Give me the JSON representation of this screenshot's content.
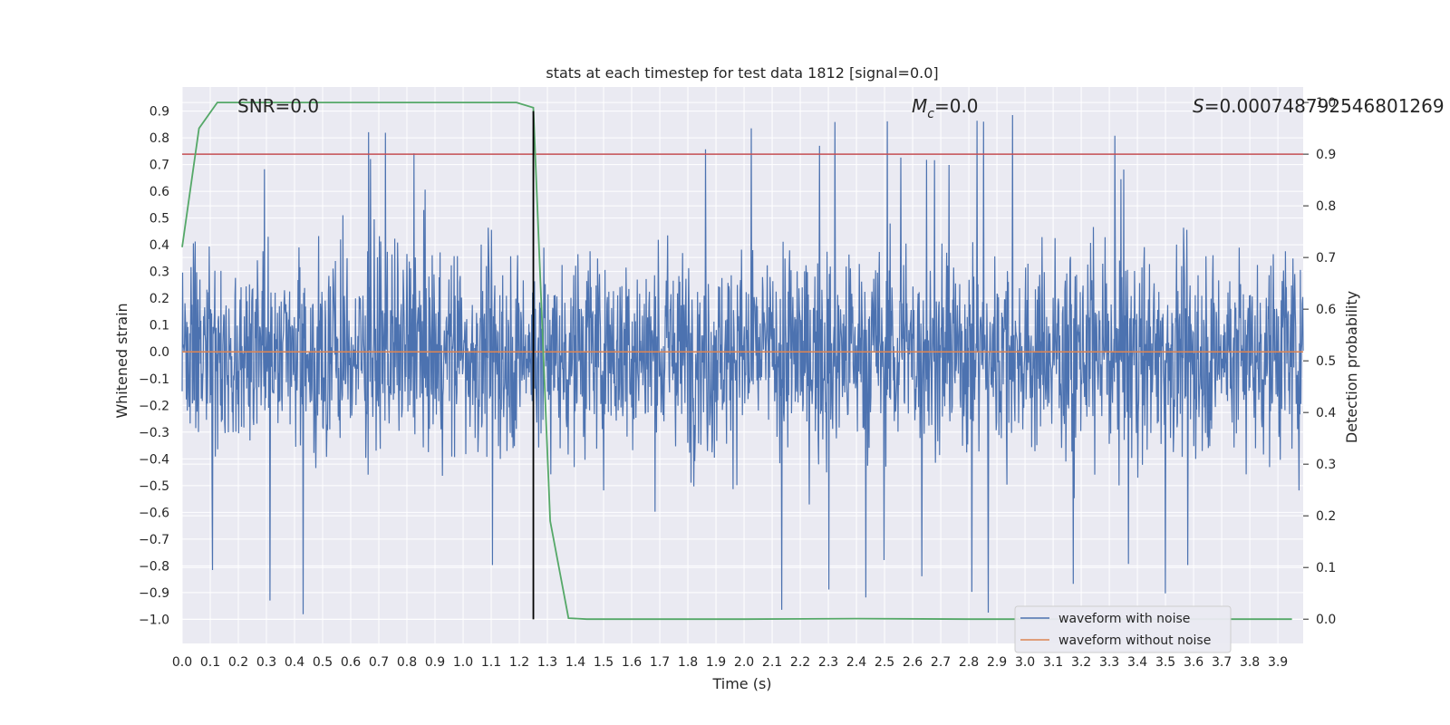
{
  "chart_data": {
    "type": "line",
    "title": "stats at each timestep for test data 1812 [signal=0.0]",
    "xlabel": "Time (s)",
    "ylabel": "Whitened strain",
    "ylabel_right": "Detection probability",
    "xlim": [
      0.0,
      3.99
    ],
    "ylim": [
      -1.09,
      0.99
    ],
    "ylim_right": [
      -0.047,
      1.03
    ],
    "x_ticks": [
      "0.0",
      "0.1",
      "0.2",
      "0.3",
      "0.4",
      "0.5",
      "0.6",
      "0.7",
      "0.8",
      "0.9",
      "1.0",
      "1.1",
      "1.2",
      "1.3",
      "1.4",
      "1.5",
      "1.6",
      "1.7",
      "1.8",
      "1.9",
      "2.0",
      "2.1",
      "2.2",
      "2.3",
      "2.4",
      "2.5",
      "2.6",
      "2.7",
      "2.8",
      "2.9",
      "3.0",
      "3.1",
      "3.2",
      "3.3",
      "3.4",
      "3.5",
      "3.6",
      "3.7",
      "3.8",
      "3.9"
    ],
    "y_ticks": [
      "−1.0",
      "−0.9",
      "−0.8",
      "−0.7",
      "−0.6",
      "−0.5",
      "−0.4",
      "−0.3",
      "−0.2",
      "−0.1",
      "0.0",
      "0.1",
      "0.2",
      "0.3",
      "0.4",
      "0.5",
      "0.6",
      "0.7",
      "0.8",
      "0.9"
    ],
    "y_ticks_right": [
      "0.0",
      "0.1",
      "0.2",
      "0.3",
      "0.4",
      "0.5",
      "0.6",
      "0.7",
      "0.8",
      "0.9",
      "1.0"
    ],
    "annotations": {
      "snr": "SNR=0.0",
      "mc_symbol": "M",
      "mc_sub": "c",
      "mc_value": "=0.0",
      "s_symbol": "S",
      "s_value": "=0.000748792546801269"
    },
    "threshold": {
      "value": 0.9,
      "axis": "right",
      "color": "#c44e52"
    },
    "marker_line": {
      "x": 1.25,
      "y_range": [
        -1.0,
        0.9
      ],
      "color": "#000000"
    },
    "series": [
      {
        "name": "waveform with noise",
        "color": "#4c72b0",
        "kind": "noise",
        "x_range": [
          0.0,
          3.99
        ],
        "amplitude_range": [
          -1.0,
          0.9
        ]
      },
      {
        "name": "waveform without noise",
        "color": "#dd8452",
        "kind": "constant",
        "value": 0.0
      },
      {
        "name": "Detection probability",
        "color": "#55a868",
        "axis": "right",
        "x": [
          0.0,
          0.06,
          0.125,
          0.19,
          0.5,
          1.0,
          1.19,
          1.25,
          1.31,
          1.375,
          1.44,
          2.0,
          2.4,
          2.8,
          3.2,
          3.6,
          3.95
        ],
        "values": [
          0.72,
          0.95,
          1.0,
          1.0,
          1.0,
          1.0,
          1.0,
          0.99,
          0.19,
          0.002,
          0.0,
          0.0,
          0.001,
          0.0,
          0.0,
          0.0,
          0.0
        ]
      }
    ],
    "legend": {
      "placement": "lower-right",
      "entries": [
        "waveform with noise",
        "waveform without noise"
      ]
    }
  }
}
